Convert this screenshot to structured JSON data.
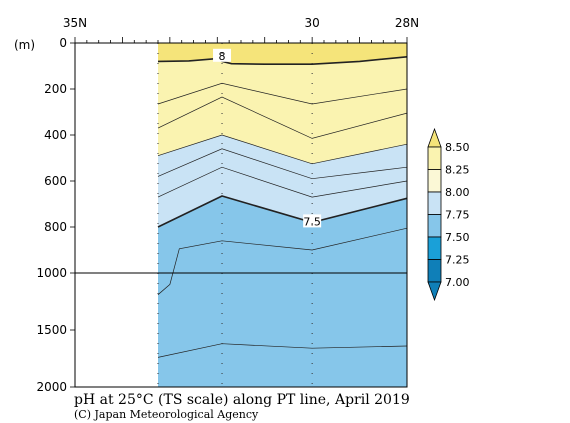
{
  "chart_data": {
    "type": "area",
    "title": "pH at 25°C (TS scale) along PT line, April 2019",
    "credit": "(C) Japan Meteorological Agency",
    "ylabel": "(m)",
    "x_ticks": [
      {
        "lat": 35,
        "label": "35N"
      },
      {
        "lat": 30,
        "label": "30"
      },
      {
        "lat": 28,
        "label": "28N"
      }
    ],
    "xlim": [
      35,
      28
    ],
    "y_ticks": [
      {
        "depth": 0,
        "label": "0"
      },
      {
        "depth": 200,
        "label": "200"
      },
      {
        "depth": 400,
        "label": "400"
      },
      {
        "depth": 600,
        "label": "600"
      },
      {
        "depth": 800,
        "label": "800"
      },
      {
        "depth": 1000,
        "label": "1000"
      },
      {
        "depth": 1500,
        "label": "1500"
      },
      {
        "depth": 2000,
        "label": "2000"
      }
    ],
    "ylim": [
      0,
      2000
    ],
    "y_scale_note": "upper panel 0-1000 m, lower panel 1000-2000 m compressed",
    "colorbar": {
      "levels": [
        "8.50",
        "8.25",
        "8.00",
        "7.75",
        "7.50",
        "7.25",
        "7.00"
      ],
      "colors": {
        "above_8_25": "#f5e47a",
        "8_00_to_8_25": "#faf3b0",
        "7_75_to_8_00": "#fbf8d6",
        "7_50_to_7_75": "#c9e3f5",
        "7_25_to_7_50": "#86c6ea",
        "7_00_to_7_25": "#1aa0d8",
        "below_7_00": "#0f7fb8"
      }
    },
    "station_lats": [
      33.25,
      31.9,
      30.0,
      28.0
    ],
    "no_data_region": {
      "from_lat": 35,
      "to_lat": 33.25
    },
    "contours": [
      {
        "value": "8",
        "label": "8",
        "points": [
          [
            33.25,
            80
          ],
          [
            32.6,
            78
          ],
          [
            32.0,
            68
          ],
          [
            31.9,
            80
          ],
          [
            31.7,
            90
          ],
          [
            31.0,
            92
          ],
          [
            30.0,
            92
          ],
          [
            29.0,
            80
          ],
          [
            28.0,
            60
          ]
        ],
        "bold": true
      },
      {
        "value": "7.9",
        "points": [
          [
            33.25,
            265
          ],
          [
            31.9,
            175
          ],
          [
            30.0,
            265
          ],
          [
            28.0,
            200
          ]
        ]
      },
      {
        "value": "7.8",
        "points": [
          [
            33.25,
            370
          ],
          [
            31.9,
            235
          ],
          [
            30.0,
            415
          ],
          [
            28.0,
            305
          ]
        ]
      },
      {
        "value": "7.75",
        "points": [
          [
            33.25,
            490
          ],
          [
            31.9,
            400
          ],
          [
            30.0,
            525
          ],
          [
            28.0,
            440
          ]
        ]
      },
      {
        "value": "7.7",
        "points": [
          [
            33.25,
            580
          ],
          [
            31.9,
            460
          ],
          [
            30.0,
            590
          ],
          [
            28.0,
            540
          ]
        ]
      },
      {
        "value": "7.6",
        "points": [
          [
            33.25,
            670
          ],
          [
            31.9,
            540
          ],
          [
            30.0,
            670
          ],
          [
            28.0,
            600
          ]
        ]
      },
      {
        "value": "7.5",
        "label": "7.5",
        "points": [
          [
            33.25,
            800
          ],
          [
            31.9,
            665
          ],
          [
            30.0,
            780
          ],
          [
            28.0,
            675
          ]
        ],
        "bold": true
      },
      {
        "value": "7.4",
        "points": [
          [
            33.25,
            1190
          ],
          [
            33.0,
            1100
          ],
          [
            32.8,
            895
          ],
          [
            31.9,
            860
          ],
          [
            30.0,
            900
          ],
          [
            28.0,
            805
          ]
        ]
      },
      {
        "value": "7.35",
        "points": [
          [
            33.25,
            1740
          ],
          [
            31.9,
            1620
          ],
          [
            30.0,
            1660
          ],
          [
            28.0,
            1640
          ]
        ]
      }
    ],
    "fill_bands": [
      {
        "band": "above_8_25",
        "upper": 0,
        "lower_points": [
          [
            33.25,
            80
          ],
          [
            32.6,
            78
          ],
          [
            32.0,
            68
          ],
          [
            31.9,
            80
          ],
          [
            31.7,
            90
          ],
          [
            31.0,
            92
          ],
          [
            30.0,
            92
          ],
          [
            29.0,
            80
          ],
          [
            28.0,
            60
          ]
        ]
      },
      {
        "band": "8_00_to_8_25",
        "upper": "prev",
        "lower_points": [
          [
            33.25,
            490
          ],
          [
            31.9,
            400
          ],
          [
            30.0,
            525
          ],
          [
            28.0,
            440
          ]
        ]
      },
      {
        "band": "7_50_to_7_75",
        "upper": "prev",
        "lower_points": [
          [
            33.25,
            800
          ],
          [
            31.9,
            665
          ],
          [
            30.0,
            780
          ],
          [
            28.0,
            675
          ]
        ]
      },
      {
        "band": "7_25_to_7_50",
        "upper": "prev",
        "lower_points": [
          [
            33.25,
            2000
          ],
          [
            28.0,
            2000
          ]
        ]
      }
    ]
  }
}
